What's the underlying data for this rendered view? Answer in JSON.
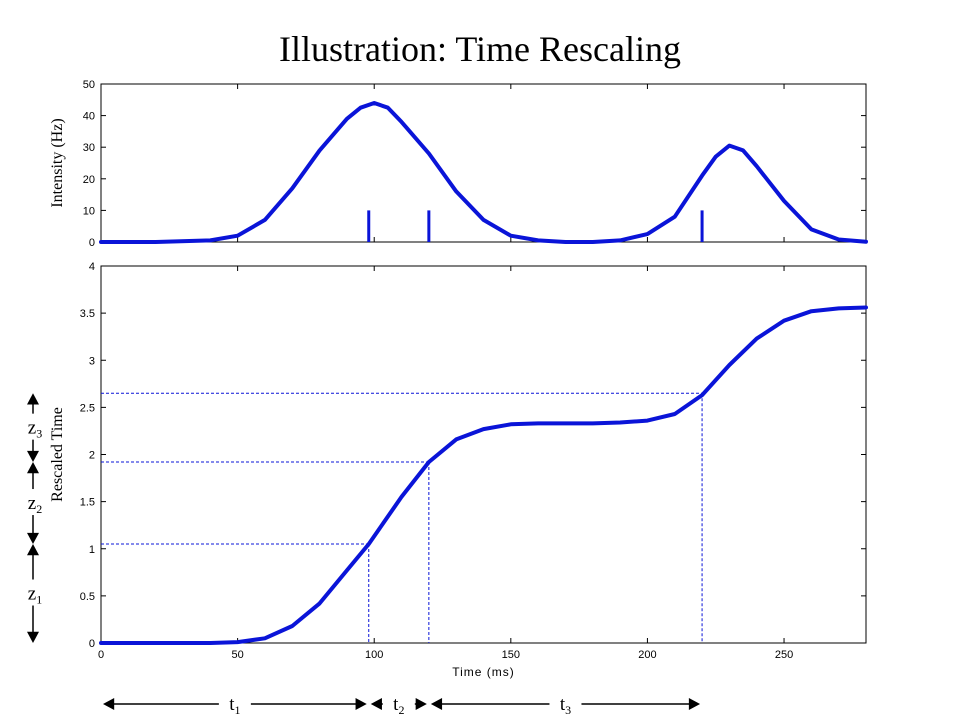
{
  "title": "Illustration:  Time Rescaling",
  "chart_data": [
    {
      "type": "line",
      "panel": "top",
      "xlabel": "",
      "ylabel": "Intensity (Hz)",
      "xlim": [
        0,
        280
      ],
      "ylim": [
        0,
        50
      ],
      "xticks": [
        0,
        50,
        100,
        150,
        200,
        250
      ],
      "yticks": [
        0,
        10,
        20,
        30,
        40,
        50
      ],
      "series": [
        {
          "x": [
            0,
            20,
            40,
            50,
            60,
            70,
            80,
            90,
            95,
            100,
            105,
            110,
            120,
            130,
            140,
            150,
            160,
            170,
            180,
            190,
            200,
            210,
            220,
            225,
            230,
            235,
            240,
            250,
            260,
            270,
            280
          ],
          "values": [
            0,
            0,
            0.5,
            2,
            7,
            17,
            29,
            39,
            42.5,
            44,
            42.5,
            38,
            28,
            16,
            7,
            2,
            0.5,
            0,
            0,
            0.5,
            2.5,
            8,
            21,
            27,
            30.5,
            29,
            24,
            13,
            4,
            0.8,
            0.1
          ]
        }
      ],
      "spikes": {
        "x": [
          98,
          120,
          220
        ],
        "height": 10
      }
    },
    {
      "type": "line",
      "panel": "bottom",
      "xlabel": "Time (ms)",
      "ylabel": "Rescaled Time",
      "xlim": [
        0,
        280
      ],
      "ylim": [
        0,
        4
      ],
      "xticks": [
        0,
        50,
        100,
        150,
        200,
        250
      ],
      "yticks": [
        0,
        0.5,
        1,
        1.5,
        2,
        2.5,
        3,
        3.5,
        4
      ],
      "ytick_labels": [
        "0",
        "0.5",
        "1",
        "1.5",
        "2",
        "2.5",
        "3",
        "3.5",
        "4"
      ],
      "series": [
        {
          "x": [
            0,
            20,
            40,
            50,
            60,
            70,
            80,
            90,
            98,
            110,
            120,
            130,
            140,
            150,
            160,
            170,
            180,
            190,
            200,
            210,
            220,
            230,
            240,
            250,
            260,
            270,
            280
          ],
          "values": [
            0,
            0,
            0,
            0.01,
            0.05,
            0.18,
            0.42,
            0.77,
            1.05,
            1.55,
            1.92,
            2.16,
            2.27,
            2.32,
            2.33,
            2.33,
            2.33,
            2.34,
            2.36,
            2.43,
            2.63,
            2.95,
            3.23,
            3.42,
            3.52,
            3.55,
            3.56
          ]
        }
      ],
      "guides": [
        {
          "x": 98,
          "y": 1.05
        },
        {
          "x": 120,
          "y": 1.92
        },
        {
          "x": 220,
          "y": 2.65
        }
      ]
    }
  ],
  "annotations": {
    "z_labels": [
      {
        "base": "z",
        "sub": "1"
      },
      {
        "base": "z",
        "sub": "2"
      },
      {
        "base": "z",
        "sub": "3"
      }
    ],
    "t_labels": [
      {
        "base": "t",
        "sub": "1"
      },
      {
        "base": "t",
        "sub": "2"
      },
      {
        "base": "t",
        "sub": "3"
      }
    ]
  }
}
